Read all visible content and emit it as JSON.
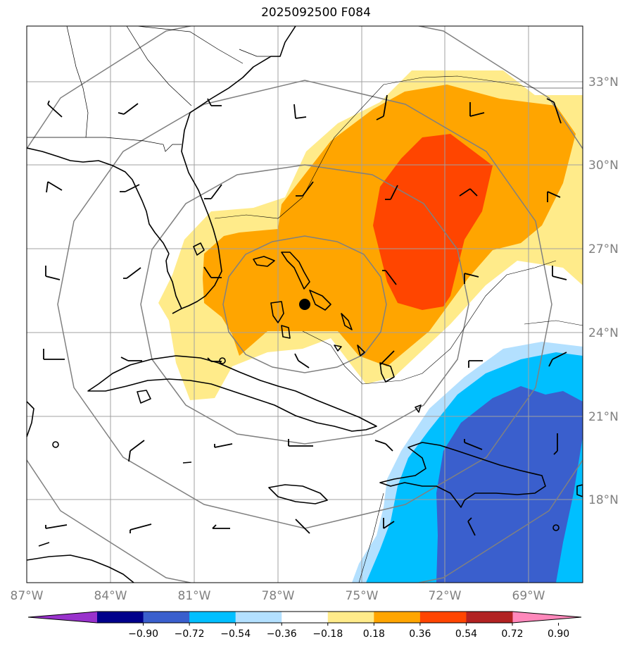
{
  "title": "2025092500 F084",
  "map": {
    "lon_labels": [
      "87°W",
      "84°W",
      "81°W",
      "78°W",
      "75°W",
      "72°W",
      "69°W"
    ],
    "lat_labels": [
      "33°N",
      "30°N",
      "27°N",
      "24°N",
      "21°N",
      "18°N"
    ],
    "center_marker": {
      "lon": -77.0,
      "lat": 25.0
    }
  },
  "colorbar": {
    "ticks": [
      "−0.90",
      "−0.72",
      "−0.54",
      "−0.36",
      "−0.18",
      "0.18",
      "0.36",
      "0.54",
      "0.72",
      "0.90"
    ],
    "colors": [
      "#9932cc",
      "#00008b",
      "#3a5fcd",
      "#00bfff",
      "#b3e0ff",
      "#ffffff",
      "#ffeb8a",
      "#ffa500",
      "#ff4500",
      "#b22222",
      "#ff88bb"
    ]
  },
  "colors": {
    "light_yellow": "#ffeb8a",
    "orange": "#ffa500",
    "red_orange": "#ff4500",
    "light_blue": "#b3e0ff",
    "deep_sky_blue": "#00bfff",
    "royal_blue": "#3a5fcd",
    "grid": "#a0a0a0",
    "range_rings": "#808080"
  }
}
